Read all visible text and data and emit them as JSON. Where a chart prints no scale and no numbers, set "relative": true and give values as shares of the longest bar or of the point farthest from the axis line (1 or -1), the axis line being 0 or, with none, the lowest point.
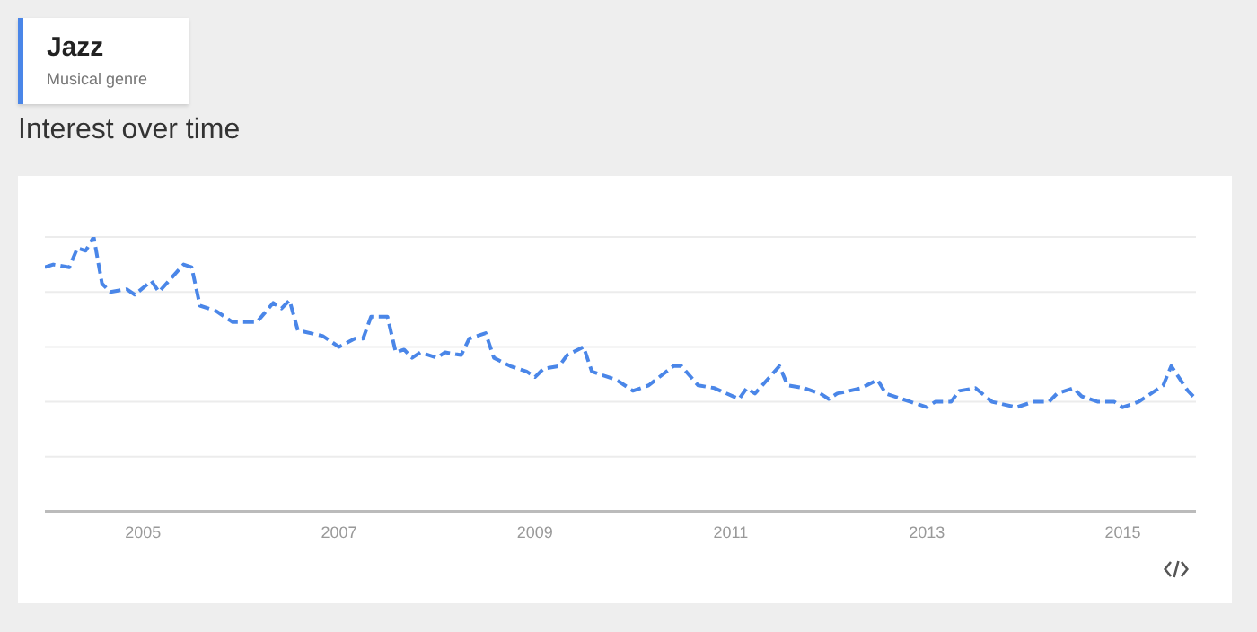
{
  "chart_data": {
    "type": "line",
    "title": "Jazz",
    "subtitle": "Musical genre",
    "annotations": [
      "Interest over time"
    ],
    "relative": true,
    "grid": "y",
    "legend": false,
    "marker": "none",
    "line_style": "dashed",
    "xlim": [
      "2004-01",
      "2015-10"
    ],
    "xticks": [
      "2005",
      "2007",
      "2009",
      "2011",
      "2013",
      "2015"
    ],
    "series": [
      {
        "color": "#4a86e8",
        "x": [
          "2004-01",
          "2004-02",
          "2004-04",
          "2004-05",
          "2004-06",
          "2004-07",
          "2004-08",
          "2004-09",
          "2004-11",
          "2004-12",
          "2005-02",
          "2005-03",
          "2005-06",
          "2005-07",
          "2005-08",
          "2005-10",
          "2005-12",
          "2006-03",
          "2006-05",
          "2006-06",
          "2006-07",
          "2006-08",
          "2006-11",
          "2007-01",
          "2007-03",
          "2007-04",
          "2007-05",
          "2007-07",
          "2007-08",
          "2007-09",
          "2007-10",
          "2007-11",
          "2008-01",
          "2008-02",
          "2008-04",
          "2008-05",
          "2008-07",
          "2008-08",
          "2008-10",
          "2008-12",
          "2009-01",
          "2009-02",
          "2009-04",
          "2009-05",
          "2009-07",
          "2009-08",
          "2009-11",
          "2010-01",
          "2010-03",
          "2010-06",
          "2010-07",
          "2010-09",
          "2010-11",
          "2011-02",
          "2011-03",
          "2011-04",
          "2011-07",
          "2011-08",
          "2011-10",
          "2011-12",
          "2012-01",
          "2012-02",
          "2012-05",
          "2012-07",
          "2012-08",
          "2012-11",
          "2013-01",
          "2013-02",
          "2013-04",
          "2013-05",
          "2013-07",
          "2013-09",
          "2013-12",
          "2014-02",
          "2014-04",
          "2014-05",
          "2014-07",
          "2014-08",
          "2014-10",
          "2014-12",
          "2015-01",
          "2015-03",
          "2015-04",
          "2015-06",
          "2015-07",
          "2015-09",
          "2015-10"
        ],
        "values": [
          0.89,
          0.9,
          0.89,
          0.96,
          0.95,
          1.0,
          0.83,
          0.8,
          0.81,
          0.79,
          0.84,
          0.8,
          0.9,
          0.89,
          0.75,
          0.73,
          0.69,
          0.69,
          0.76,
          0.74,
          0.77,
          0.66,
          0.64,
          0.6,
          0.63,
          0.63,
          0.71,
          0.71,
          0.58,
          0.59,
          0.56,
          0.58,
          0.56,
          0.58,
          0.57,
          0.63,
          0.65,
          0.56,
          0.53,
          0.51,
          0.49,
          0.52,
          0.53,
          0.57,
          0.6,
          0.51,
          0.48,
          0.44,
          0.46,
          0.53,
          0.53,
          0.46,
          0.45,
          0.41,
          0.45,
          0.43,
          0.53,
          0.46,
          0.45,
          0.43,
          0.41,
          0.43,
          0.45,
          0.48,
          0.43,
          0.4,
          0.38,
          0.4,
          0.4,
          0.44,
          0.45,
          0.4,
          0.38,
          0.4,
          0.4,
          0.43,
          0.45,
          0.42,
          0.4,
          0.4,
          0.38,
          0.4,
          0.42,
          0.46,
          0.53,
          0.44,
          0.41
        ]
      }
    ]
  }
}
